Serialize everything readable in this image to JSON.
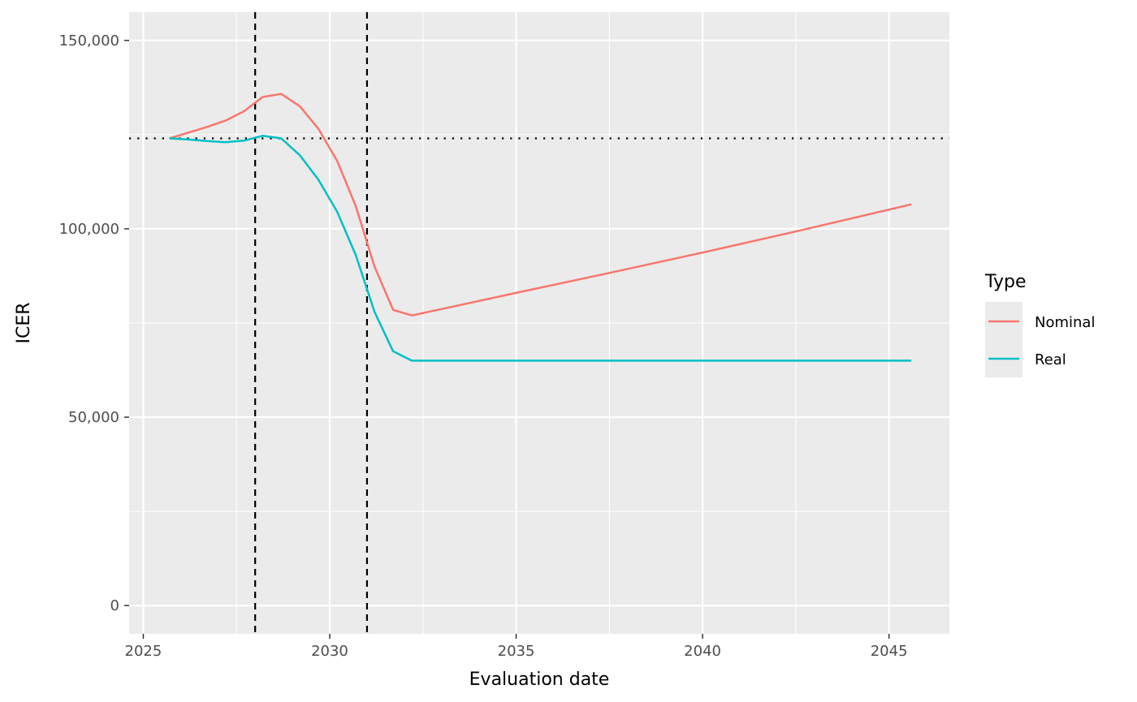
{
  "chart_data": {
    "type": "line",
    "xlabel": "Evaluation date",
    "ylabel": "ICER",
    "xlim": [
      2024.62,
      2046.62
    ],
    "ylim": [
      -7500,
      157500
    ],
    "x_ticks": [
      2025,
      2030,
      2035,
      2040,
      2045
    ],
    "x_tick_labels": [
      "2025",
      "2030",
      "2035",
      "2040",
      "2045"
    ],
    "x_minor_ticks": [
      2027.5,
      2032.5,
      2037.5,
      2042.5
    ],
    "y_ticks": [
      0,
      50000,
      100000,
      150000
    ],
    "y_tick_labels": [
      "0",
      "50,000",
      "100,000",
      "150,000"
    ],
    "y_minor_ticks": [
      25000,
      75000,
      125000
    ],
    "grid": true,
    "legend": {
      "title": "Type",
      "placement": "right"
    },
    "reference_lines": {
      "horizontal_dotted_y": 124000,
      "vertical_dashed_x": [
        2028.0,
        2031.0
      ]
    },
    "colors": {
      "panel_background": "#ebebeb",
      "grid": "#ffffff",
      "Nominal": "#F8766D",
      "Real": "#00BFC4",
      "reference": "#000000"
    },
    "series": [
      {
        "name": "Nominal",
        "x": [
          2025.7,
          2026.2,
          2026.7,
          2027.2,
          2027.7,
          2028.2,
          2028.7,
          2029.2,
          2029.7,
          2030.2,
          2030.7,
          2031.2,
          2031.7,
          2032.2,
          2033.0,
          2035.0,
          2037.5,
          2040.0,
          2042.5,
          2045.6
        ],
        "y": [
          124000,
          125500,
          127000,
          128700,
          131200,
          135000,
          135800,
          132500,
          126500,
          118000,
          106000,
          90000,
          78500,
          77000,
          78700,
          83000,
          88300,
          93700,
          99300,
          106500
        ]
      },
      {
        "name": "Real",
        "x": [
          2025.7,
          2026.2,
          2026.7,
          2027.2,
          2027.7,
          2028.2,
          2028.7,
          2029.2,
          2029.7,
          2030.2,
          2030.7,
          2031.2,
          2031.7,
          2032.2,
          2035.0,
          2040.0,
          2045.6
        ],
        "y": [
          124000,
          123700,
          123300,
          123000,
          123400,
          124700,
          124000,
          119500,
          113000,
          104500,
          93000,
          78000,
          67500,
          65000,
          65000,
          65000,
          65000
        ]
      }
    ]
  }
}
